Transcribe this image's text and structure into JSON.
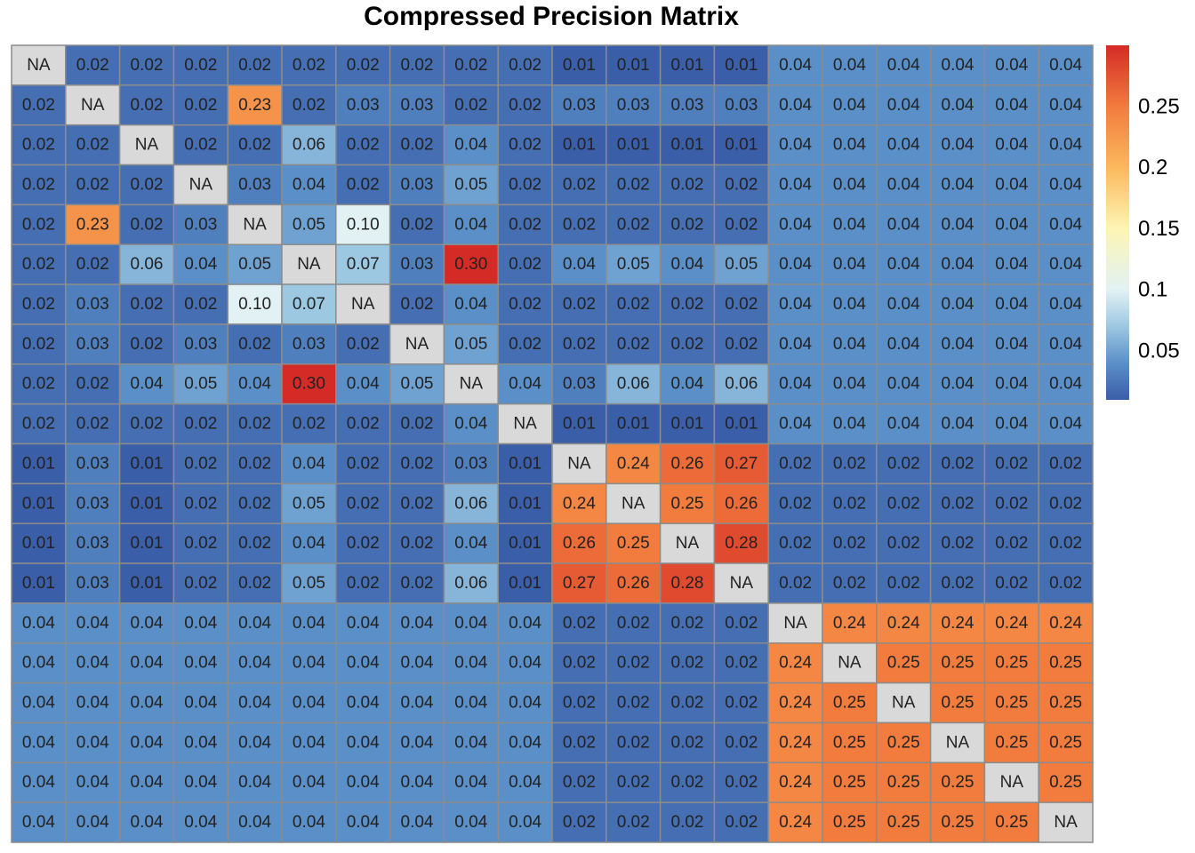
{
  "chart_data": {
    "type": "heatmap",
    "title": "Compressed Precision Matrix",
    "xlabel": "",
    "ylabel": "",
    "n_rows": 20,
    "n_cols": 20,
    "na_label": "NA",
    "values": [
      [
        null,
        0.02,
        0.02,
        0.02,
        0.02,
        0.02,
        0.02,
        0.02,
        0.02,
        0.02,
        0.01,
        0.01,
        0.01,
        0.01,
        0.04,
        0.04,
        0.04,
        0.04,
        0.04,
        0.04
      ],
      [
        0.02,
        null,
        0.02,
        0.02,
        0.23,
        0.02,
        0.03,
        0.03,
        0.02,
        0.02,
        0.03,
        0.03,
        0.03,
        0.03,
        0.04,
        0.04,
        0.04,
        0.04,
        0.04,
        0.04
      ],
      [
        0.02,
        0.02,
        null,
        0.02,
        0.02,
        0.06,
        0.02,
        0.02,
        0.04,
        0.02,
        0.01,
        0.01,
        0.01,
        0.01,
        0.04,
        0.04,
        0.04,
        0.04,
        0.04,
        0.04
      ],
      [
        0.02,
        0.02,
        0.02,
        null,
        0.03,
        0.04,
        0.02,
        0.03,
        0.05,
        0.02,
        0.02,
        0.02,
        0.02,
        0.02,
        0.04,
        0.04,
        0.04,
        0.04,
        0.04,
        0.04
      ],
      [
        0.02,
        0.23,
        0.02,
        0.03,
        null,
        0.05,
        0.1,
        0.02,
        0.04,
        0.02,
        0.02,
        0.02,
        0.02,
        0.02,
        0.04,
        0.04,
        0.04,
        0.04,
        0.04,
        0.04
      ],
      [
        0.02,
        0.02,
        0.06,
        0.04,
        0.05,
        null,
        0.07,
        0.03,
        0.3,
        0.02,
        0.04,
        0.05,
        0.04,
        0.05,
        0.04,
        0.04,
        0.04,
        0.04,
        0.04,
        0.04
      ],
      [
        0.02,
        0.03,
        0.02,
        0.02,
        0.1,
        0.07,
        null,
        0.02,
        0.04,
        0.02,
        0.02,
        0.02,
        0.02,
        0.02,
        0.04,
        0.04,
        0.04,
        0.04,
        0.04,
        0.04
      ],
      [
        0.02,
        0.03,
        0.02,
        0.03,
        0.02,
        0.03,
        0.02,
        null,
        0.05,
        0.02,
        0.02,
        0.02,
        0.02,
        0.02,
        0.04,
        0.04,
        0.04,
        0.04,
        0.04,
        0.04
      ],
      [
        0.02,
        0.02,
        0.04,
        0.05,
        0.04,
        0.3,
        0.04,
        0.05,
        null,
        0.04,
        0.03,
        0.06,
        0.04,
        0.06,
        0.04,
        0.04,
        0.04,
        0.04,
        0.04,
        0.04
      ],
      [
        0.02,
        0.02,
        0.02,
        0.02,
        0.02,
        0.02,
        0.02,
        0.02,
        0.04,
        null,
        0.01,
        0.01,
        0.01,
        0.01,
        0.04,
        0.04,
        0.04,
        0.04,
        0.04,
        0.04
      ],
      [
        0.01,
        0.03,
        0.01,
        0.02,
        0.02,
        0.04,
        0.02,
        0.02,
        0.03,
        0.01,
        null,
        0.24,
        0.26,
        0.27,
        0.02,
        0.02,
        0.02,
        0.02,
        0.02,
        0.02
      ],
      [
        0.01,
        0.03,
        0.01,
        0.02,
        0.02,
        0.05,
        0.02,
        0.02,
        0.06,
        0.01,
        0.24,
        null,
        0.25,
        0.26,
        0.02,
        0.02,
        0.02,
        0.02,
        0.02,
        0.02
      ],
      [
        0.01,
        0.03,
        0.01,
        0.02,
        0.02,
        0.04,
        0.02,
        0.02,
        0.04,
        0.01,
        0.26,
        0.25,
        null,
        0.28,
        0.02,
        0.02,
        0.02,
        0.02,
        0.02,
        0.02
      ],
      [
        0.01,
        0.03,
        0.01,
        0.02,
        0.02,
        0.05,
        0.02,
        0.02,
        0.06,
        0.01,
        0.27,
        0.26,
        0.28,
        null,
        0.02,
        0.02,
        0.02,
        0.02,
        0.02,
        0.02
      ],
      [
        0.04,
        0.04,
        0.04,
        0.04,
        0.04,
        0.04,
        0.04,
        0.04,
        0.04,
        0.04,
        0.02,
        0.02,
        0.02,
        0.02,
        null,
        0.24,
        0.24,
        0.24,
        0.24,
        0.24
      ],
      [
        0.04,
        0.04,
        0.04,
        0.04,
        0.04,
        0.04,
        0.04,
        0.04,
        0.04,
        0.04,
        0.02,
        0.02,
        0.02,
        0.02,
        0.24,
        null,
        0.25,
        0.25,
        0.25,
        0.25
      ],
      [
        0.04,
        0.04,
        0.04,
        0.04,
        0.04,
        0.04,
        0.04,
        0.04,
        0.04,
        0.04,
        0.02,
        0.02,
        0.02,
        0.02,
        0.24,
        0.25,
        null,
        0.25,
        0.25,
        0.25
      ],
      [
        0.04,
        0.04,
        0.04,
        0.04,
        0.04,
        0.04,
        0.04,
        0.04,
        0.04,
        0.04,
        0.02,
        0.02,
        0.02,
        0.02,
        0.24,
        0.25,
        0.25,
        null,
        0.25,
        0.25
      ],
      [
        0.04,
        0.04,
        0.04,
        0.04,
        0.04,
        0.04,
        0.04,
        0.04,
        0.04,
        0.04,
        0.02,
        0.02,
        0.02,
        0.02,
        0.24,
        0.25,
        0.25,
        0.25,
        null,
        0.25
      ],
      [
        0.04,
        0.04,
        0.04,
        0.04,
        0.04,
        0.04,
        0.04,
        0.04,
        0.04,
        0.04,
        0.02,
        0.02,
        0.02,
        0.02,
        0.24,
        0.25,
        0.25,
        0.25,
        0.25,
        null
      ]
    ],
    "colorscale": {
      "min": 0.01,
      "max": 0.3,
      "stops": [
        {
          "value": 0.01,
          "color": "#3b5ea8"
        },
        {
          "value": 0.04,
          "color": "#5a8fc8"
        },
        {
          "value": 0.07,
          "color": "#9dc8e2"
        },
        {
          "value": 0.1,
          "color": "#e2f2f4"
        },
        {
          "value": 0.15,
          "color": "#fdf5b5"
        },
        {
          "value": 0.2,
          "color": "#fbb85c"
        },
        {
          "value": 0.25,
          "color": "#f27b3e"
        },
        {
          "value": 0.3,
          "color": "#d42b26"
        }
      ],
      "ticks": [
        0.05,
        0.1,
        0.15,
        0.2,
        0.25
      ],
      "tick_labels": [
        "0.05",
        "0.1",
        "0.15",
        "0.2",
        "0.25"
      ],
      "legend_position": "right"
    },
    "na_color": "#d9d9d9",
    "grid_color": "#8c8c8c"
  }
}
